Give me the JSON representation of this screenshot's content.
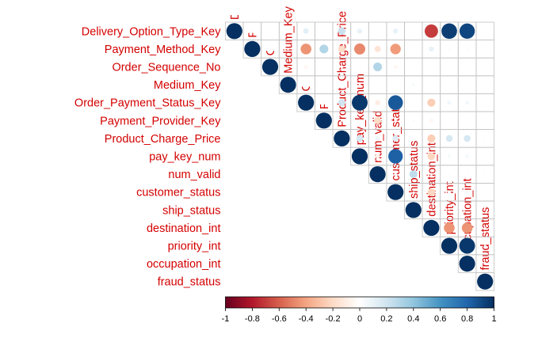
{
  "chart_data": {
    "type": "heatmap",
    "subtype": "correlation-matrix-circles-upper",
    "variables": [
      "Delivery_Option_Type_Key",
      "Payment_Method_Key",
      "Order_Sequence_No",
      "Medium_Key",
      "Order_Payment_Status_Key",
      "Payment_Provider_Key",
      "Product_Charge_Price",
      "pay_key_num",
      "num_valid",
      "customer_status",
      "ship_status",
      "destination_int",
      "priority_int",
      "occupation_int",
      "fraud_status"
    ],
    "correlations": [
      [
        1,
        0,
        0,
        0,
        0,
        0,
        0,
        0,
        0,
        0,
        0,
        0,
        0,
        0,
        0
      ],
      [
        0.02,
        1,
        0,
        0,
        0,
        0,
        0,
        0,
        0,
        0,
        0,
        0,
        0,
        0,
        0
      ],
      [
        0,
        0.01,
        1,
        0,
        0,
        0,
        0,
        0,
        0,
        0,
        0,
        0,
        0,
        0,
        0
      ],
      [
        0,
        0.02,
        0.01,
        1,
        0,
        0,
        0,
        0,
        0,
        0,
        0,
        0,
        0,
        0,
        0
      ],
      [
        0.12,
        -0.45,
        -0.05,
        0.02,
        1,
        0,
        0,
        0,
        0,
        0,
        0,
        0,
        0,
        0,
        0
      ],
      [
        0.01,
        0.3,
        0,
        0.01,
        -0.03,
        1,
        0,
        0,
        0,
        0,
        0,
        0,
        0,
        0,
        0
      ],
      [
        0.22,
        -0.2,
        -0.03,
        0.02,
        0.2,
        0.02,
        1,
        0,
        0,
        0,
        0,
        0,
        0,
        0,
        0
      ],
      [
        0.1,
        -0.48,
        -0.02,
        0.02,
        0.97,
        -0.03,
        0.18,
        1,
        0,
        0,
        0,
        0,
        0,
        0,
        0
      ],
      [
        0.01,
        -0.15,
        0.3,
        0.01,
        -0.1,
        -0.2,
        0.08,
        -0.08,
        1,
        0,
        0,
        0,
        0,
        0,
        0
      ],
      [
        0.1,
        -0.43,
        -0.05,
        0.01,
        0.85,
        -0.03,
        0.15,
        0.82,
        0.03,
        1,
        0,
        0,
        0,
        0,
        0
      ],
      [
        0,
        0.01,
        0,
        0.04,
        0.02,
        0.03,
        0.02,
        0.02,
        0.25,
        0.01,
        1,
        0,
        0,
        0,
        0
      ],
      [
        -0.7,
        0.1,
        0,
        0.01,
        -0.25,
        -0.05,
        -0.25,
        -0.22,
        0.03,
        -0.22,
        0.02,
        1,
        0,
        0,
        0
      ],
      [
        0.95,
        0.02,
        0,
        0.01,
        0.06,
        0.01,
        0.18,
        0.05,
        0.02,
        0.04,
        0,
        -0.45,
        1,
        0,
        0
      ],
      [
        0.92,
        0.02,
        0,
        0.01,
        0.06,
        0.01,
        0.18,
        0.05,
        0.02,
        0.04,
        0,
        -0.45,
        0.97,
        1,
        0
      ],
      [
        0,
        0.01,
        0,
        0,
        0.01,
        0,
        0.02,
        0.01,
        0.02,
        0.01,
        0,
        0.02,
        0.02,
        0.01,
        1
      ]
    ],
    "colorbar": {
      "min": -1,
      "max": 1,
      "ticks": [
        "-1",
        "-0.8",
        "-0.6",
        "-0.4",
        "-0.2",
        "0",
        "0.2",
        "0.4",
        "0.6",
        "0.8",
        "1"
      ],
      "palette": [
        "#67001F",
        "#B2182B",
        "#D6604D",
        "#F4A582",
        "#FDDBC7",
        "#FFFFFF",
        "#D1E5F0",
        "#92C5DE",
        "#4393C3",
        "#2166AC",
        "#053061"
      ]
    },
    "label_color": "#D40000",
    "grid_color": "#C0C0C0",
    "legend_placement": "bottom"
  }
}
